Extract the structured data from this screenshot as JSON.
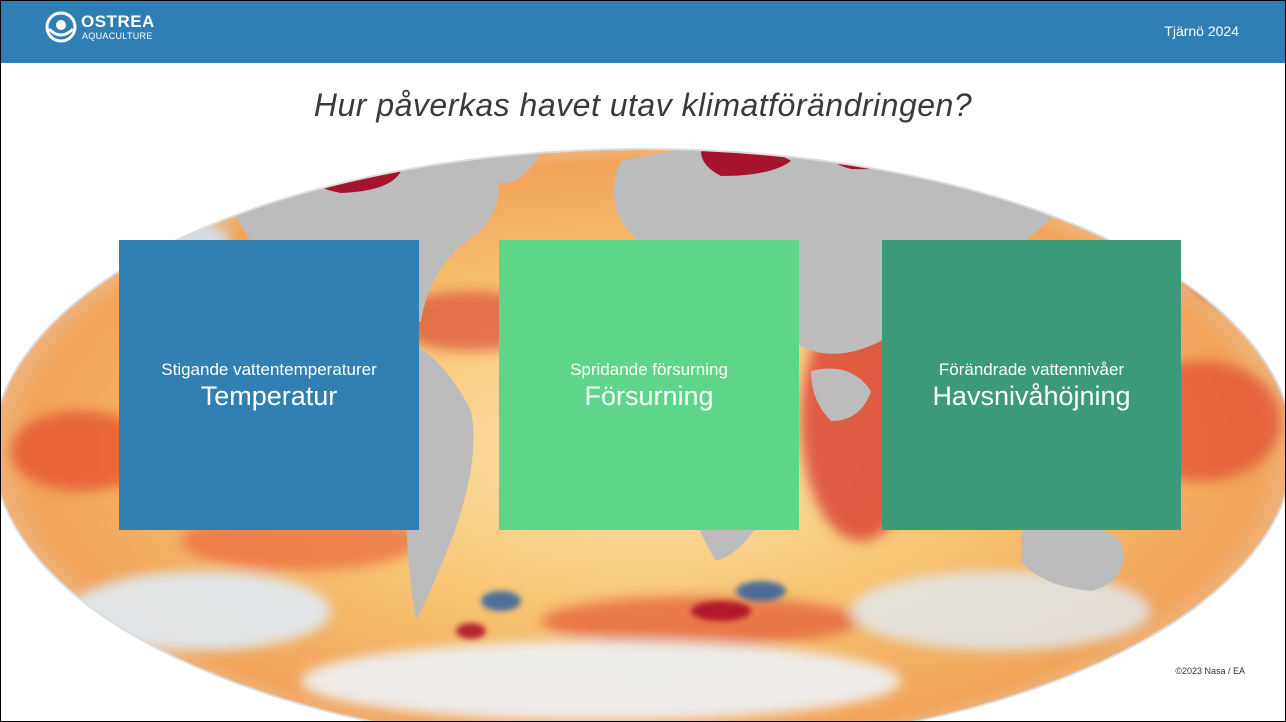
{
  "header": {
    "logo_name": "OSTREA",
    "logo_sub": "AQUACULTURE",
    "right_text": "Tjärnö 2024"
  },
  "slide": {
    "title": "Hur påverkas havet utav klimatförändringen?",
    "credit": "©2023 Nasa / EA"
  },
  "map": {
    "icon": "world-ocean-temperature-map",
    "colors": {
      "land": "#b9b9b9",
      "warm": "#d3342a",
      "hot": "#a3001f",
      "mild": "#f6c56a",
      "cool": "#2a6fb5"
    }
  },
  "cards": [
    {
      "subtitle": "Stigande vattentemperaturer",
      "title": "Temperatur",
      "color": "#3280b3"
    },
    {
      "subtitle": "Spridande försurning",
      "title": "Försurning",
      "color": "#5fd58a"
    },
    {
      "subtitle": "Förändrade vattennivåer",
      "title": "Havsnivåhöjning",
      "color": "#3c9a78"
    }
  ]
}
